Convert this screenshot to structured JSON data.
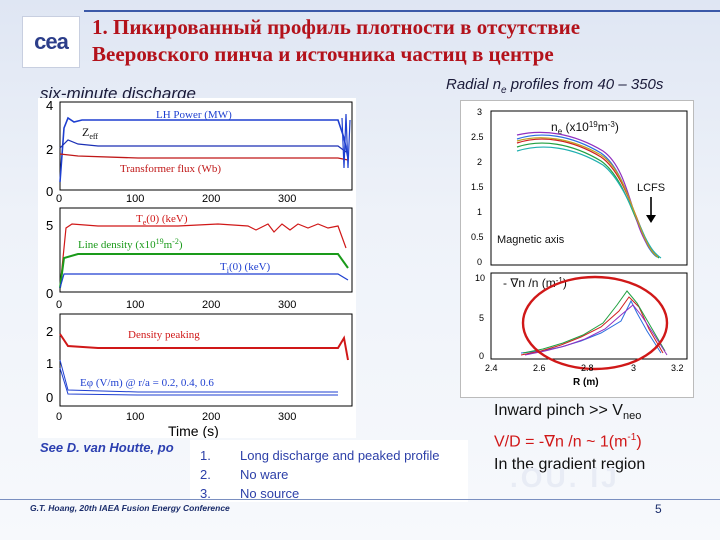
{
  "header": {
    "logo": "cea",
    "title_line1": "1. Пикированный профиль плотности в отсутствие",
    "title_line2": "Вееровского пинча и источника частиц в центре"
  },
  "left_figure": {
    "title": "six-minute discharge",
    "x_label": "Time (s)",
    "x_ticks": [
      "0",
      "100",
      "200",
      "300"
    ],
    "panel1": {
      "y_ticks": [
        "0",
        "2",
        "4"
      ],
      "lh_label": "LH Power (MW)",
      "zeff_label": "Z",
      "zeff_sub": "eff",
      "flux_label": "Transformer flux (Wb)"
    },
    "panel2": {
      "y_ticks": [
        "0",
        "5"
      ],
      "te_label": "T",
      "te_sub": "e",
      "te_rest": "(0) (keV)",
      "nl_label": "Line density (x10",
      "nl_sup": "19",
      "nl_rest": "m",
      "nl_sup2": "-2",
      "nl_end": ")",
      "ti_label": "T",
      "ti_sub": "i",
      "ti_rest": "(0) (keV)"
    },
    "panel3": {
      "y_ticks": [
        "0",
        "1",
        "2"
      ],
      "peak_label": "Density peaking",
      "e_label": "Eφ (V/m) @ r/a = 0.2, 0.4, 0.6"
    }
  },
  "right_figure": {
    "title_pre": "Radial n",
    "title_sub": "e",
    "title_post": " profiles from 40 – 350s",
    "upper": {
      "y_ticks": [
        "0",
        "0.5",
        "1",
        "1.5",
        "2",
        "2.5",
        "3"
      ],
      "ne_label": "n",
      "ne_sub": "e",
      "ne_rest": " (x10",
      "ne_sup": "19",
      "ne_mid": "m",
      "ne_sup2": "-3",
      "ne_end": ")",
      "lcfs": "LCFS",
      "axis": "Magnetic axis"
    },
    "lower": {
      "y_ticks": [
        "0",
        "5",
        "10"
      ],
      "grad_label": "- ∇n /n (m",
      "grad_sup": "-1",
      "grad_end": ")",
      "x_ticks": [
        "2.4",
        "2.6",
        "2.8",
        "3",
        "3.2"
      ],
      "x_label": "R (m)"
    }
  },
  "bottom_right": {
    "line1_pre": "Inward pinch >> V",
    "line1_sub": "neo",
    "line2_pre": "V/D = -∇n /n ~ 1(m",
    "line2_sup": "-1",
    "line2_end": ")",
    "line3": "In the gradient region"
  },
  "reference": "See D. van Houtte, po",
  "list": [
    {
      "num": "1.",
      "text": "Long discharge and peaked profile"
    },
    {
      "num": "2.",
      "text": "No ware"
    },
    {
      "num": "3.",
      "text": "No source"
    }
  ],
  "footer": "G.T. Hoang, 20th IAEA Fusion Energy Conference",
  "page_number": "5"
}
